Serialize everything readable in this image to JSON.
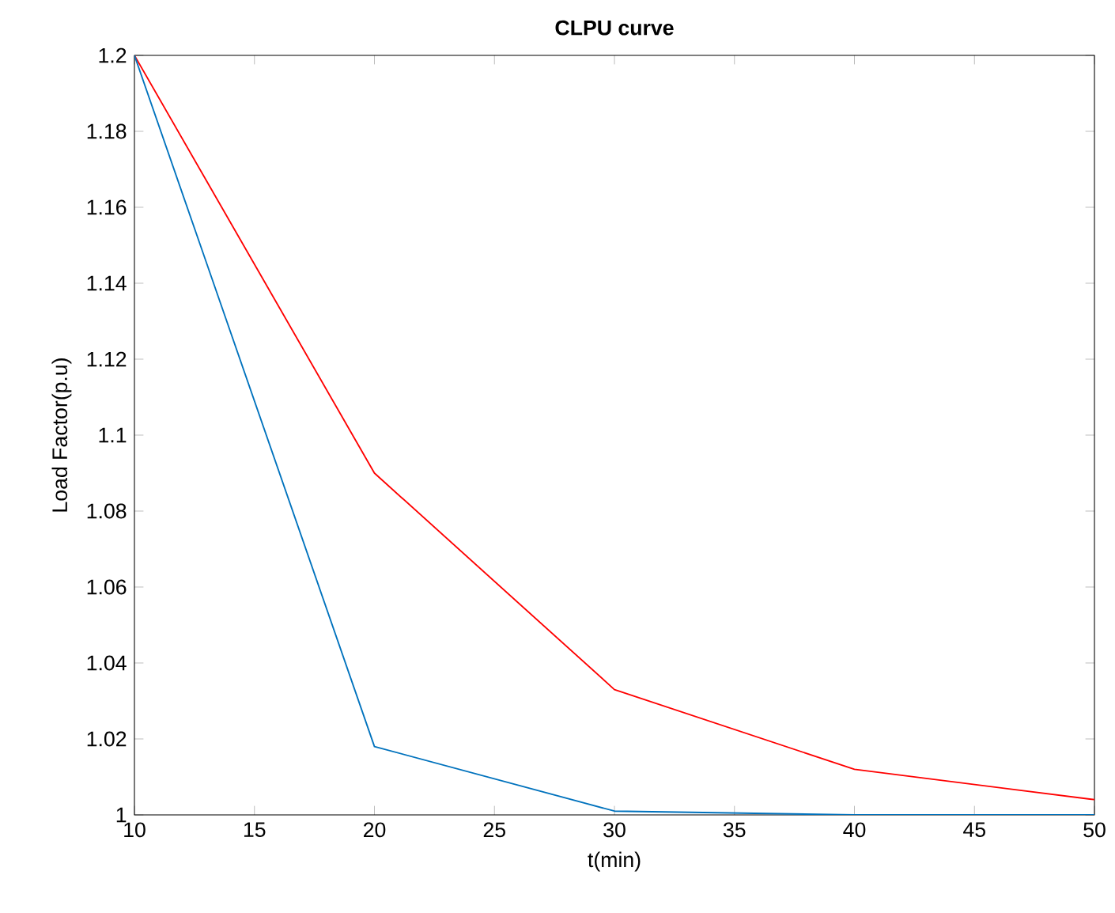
{
  "chart_data": {
    "type": "line",
    "title": "CLPU curve",
    "xlabel": "t(min)",
    "ylabel": "Load Factor(p.u)",
    "x": [
      10,
      20,
      30,
      40,
      50
    ],
    "series": [
      {
        "color": "#ff0000",
        "values": [
          1.2,
          1.09,
          1.033,
          1.012,
          1.004
        ]
      },
      {
        "color": "#0072bd",
        "values": [
          1.2,
          1.018,
          1.001,
          1.0,
          1.0
        ]
      }
    ],
    "xlim": [
      10,
      50
    ],
    "ylim": [
      1,
      1.2
    ],
    "xticks": [
      10,
      15,
      20,
      25,
      30,
      35,
      40,
      45,
      50
    ],
    "yticks": [
      1,
      1.02,
      1.04,
      1.06,
      1.08,
      1.1,
      1.12,
      1.14,
      1.16,
      1.18,
      1.2
    ],
    "grid": false,
    "marker": "none",
    "line_style": "solid"
  }
}
